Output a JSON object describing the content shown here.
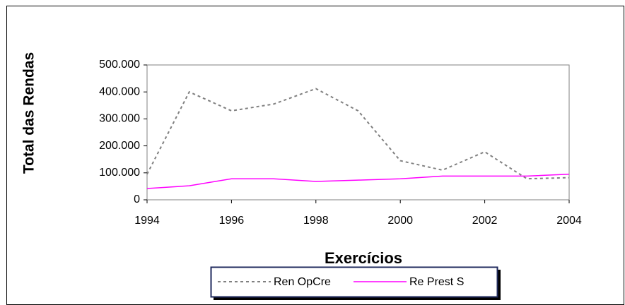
{
  "chart_data": {
    "type": "line",
    "x_label": "Exercícios",
    "y_label": "Total das Rendas",
    "x": [
      1994,
      1995,
      1996,
      1997,
      1998,
      1999,
      2000,
      2001,
      2002,
      2003,
      2004
    ],
    "series": [
      {
        "name": "Ren OpCre",
        "color": "#808080",
        "dash": "4,4",
        "values": [
          95000,
          400000,
          330000,
          355000,
          412000,
          330000,
          145000,
          110000,
          178000,
          78000,
          82000
        ]
      },
      {
        "name": "Re Prest S",
        "color": "#ff00ff",
        "values": [
          42000,
          52000,
          78000,
          78000,
          68000,
          73000,
          78000,
          88000,
          88000,
          88000,
          95000
        ]
      }
    ],
    "xlim": [
      1994,
      2004
    ],
    "xticks": [
      1994,
      1996,
      1998,
      2000,
      2002,
      2004
    ],
    "ylim": [
      0,
      500000
    ],
    "yticks": [
      0,
      {
        "value": 100000,
        "label": "100.000"
      },
      {
        "value": 200000,
        "label": "200.000"
      },
      {
        "value": 300000,
        "label": "300.000"
      },
      {
        "value": 400000,
        "label": "400.000"
      },
      {
        "value": 500000,
        "label": "500.000"
      }
    ],
    "legend": "bottom"
  }
}
